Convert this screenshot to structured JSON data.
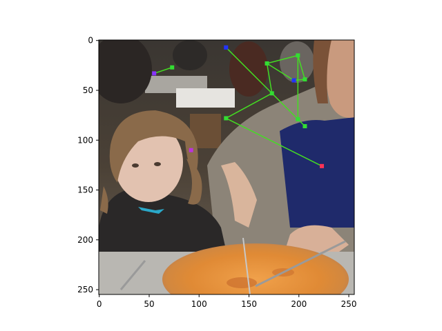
{
  "figure": {
    "x_ticks": [
      "0",
      "50",
      "100",
      "150",
      "200",
      "250"
    ],
    "y_ticks": [
      "0",
      "50",
      "100",
      "150",
      "200",
      "250"
    ],
    "x_range": [
      0,
      255
    ],
    "y_range": [
      255,
      0
    ]
  },
  "scene": {
    "subjects": [
      "child",
      "adult",
      "pizza"
    ]
  },
  "chart_data": {
    "type": "scatter",
    "title": "",
    "xlabel": "",
    "ylabel": "",
    "xlim": [
      0,
      255
    ],
    "ylim": [
      255,
      0
    ],
    "grid": false,
    "x_ticks": [
      0,
      50,
      100,
      150,
      200,
      250
    ],
    "y_ticks": [
      0,
      50,
      100,
      150,
      200,
      250
    ],
    "keypoints": [
      {
        "x": 127,
        "y": 7,
        "color": "#2233ff"
      },
      {
        "x": 168,
        "y": 23,
        "color": "#33dd33"
      },
      {
        "x": 173,
        "y": 53,
        "color": "#33dd33"
      },
      {
        "x": 195,
        "y": 40,
        "color": "#2233ff"
      },
      {
        "x": 199,
        "y": 15,
        "color": "#33dd33"
      },
      {
        "x": 206,
        "y": 39,
        "color": "#33dd33"
      },
      {
        "x": 199,
        "y": 79,
        "color": "#33dd33"
      },
      {
        "x": 206,
        "y": 86,
        "color": "#33dd33"
      },
      {
        "x": 127,
        "y": 78,
        "color": "#33dd33"
      },
      {
        "x": 223,
        "y": 126,
        "color": "#ff3355"
      },
      {
        "x": 55,
        "y": 33,
        "color": "#8833ff"
      },
      {
        "x": 73,
        "y": 27,
        "color": "#33dd33"
      },
      {
        "x": 92,
        "y": 110,
        "color": "#bb33dd"
      }
    ],
    "edges": [
      [
        0,
        2
      ],
      [
        2,
        1
      ],
      [
        1,
        4
      ],
      [
        4,
        5
      ],
      [
        4,
        6
      ],
      [
        6,
        7
      ],
      [
        2,
        8
      ],
      [
        8,
        9
      ],
      [
        2,
        6
      ],
      [
        10,
        11
      ],
      [
        3,
        5
      ],
      [
        1,
        3
      ]
    ]
  }
}
